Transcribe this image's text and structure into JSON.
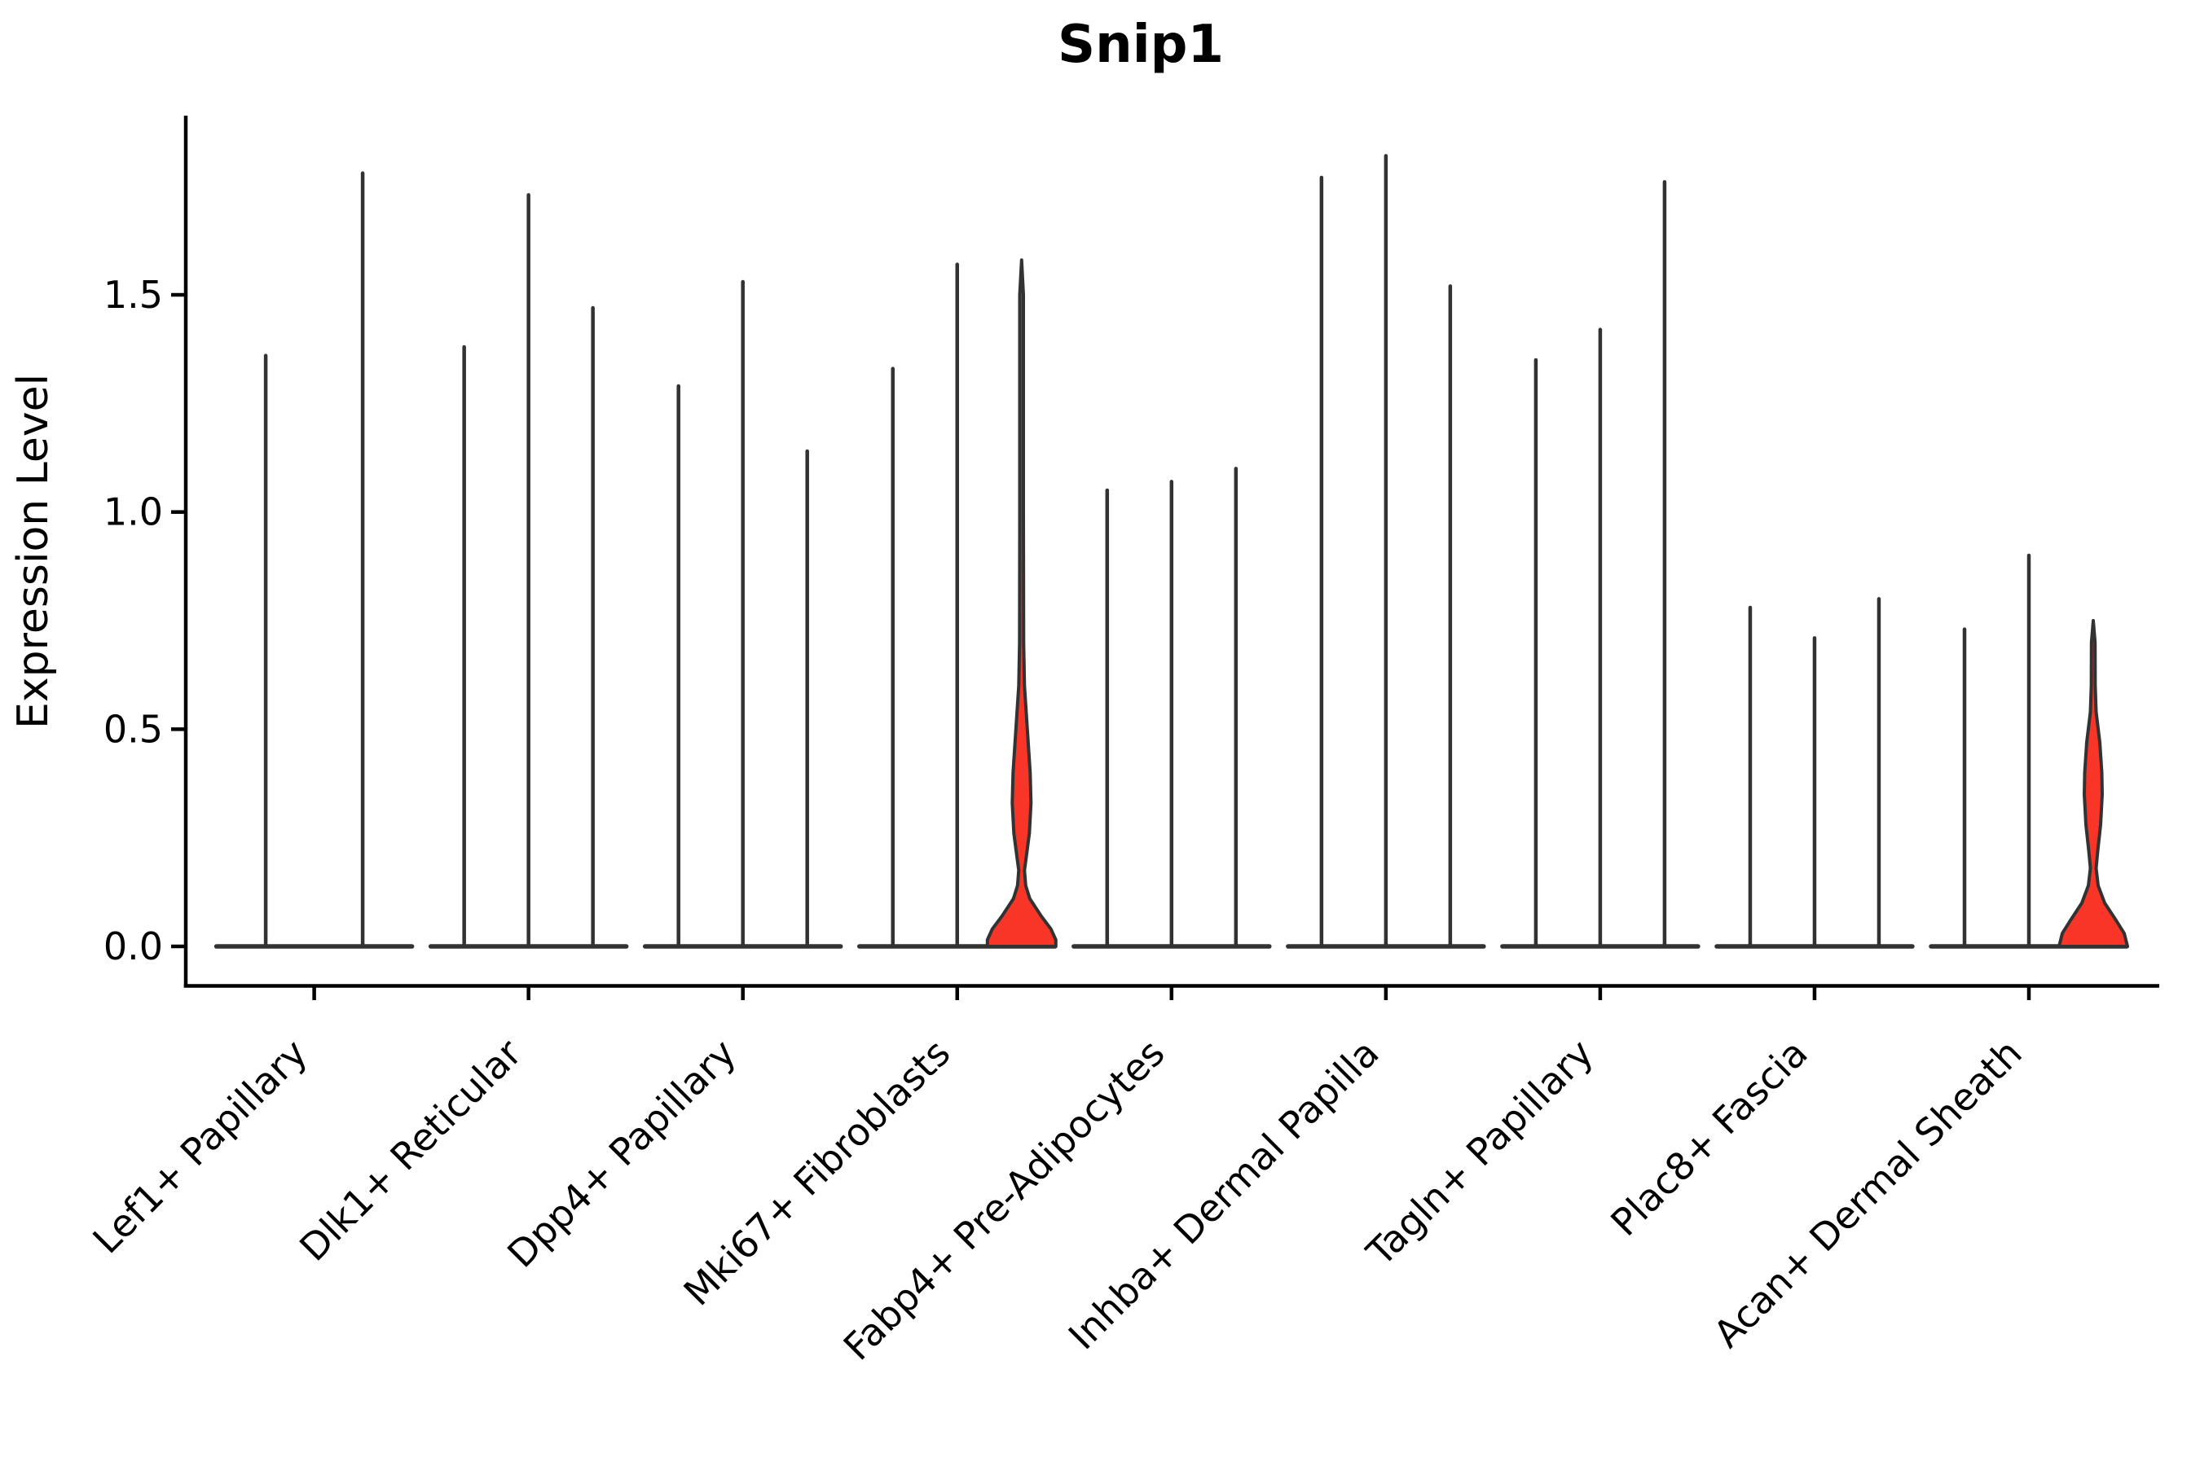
{
  "chart_data": {
    "type": "violin",
    "title": "Snip1",
    "ylabel": "Expression Level",
    "xlabel": "",
    "ytick_labels": [
      "0.0",
      "0.5",
      "1.0",
      "1.5"
    ],
    "ytick_values": [
      0.0,
      0.5,
      1.0,
      1.5
    ],
    "ylim": [
      -0.09,
      1.91
    ],
    "grid": false,
    "legend": "none",
    "background_color": "#ffffff",
    "spine_color": "#000000",
    "line_color": "#323232",
    "violin_fill_color": "#f93528",
    "categories": [
      "Lef1+ Papillary",
      "Dlk1+ Reticular",
      "Dpp4+ Papillary",
      "Mki67+ Fibroblasts",
      "Fabp4+ Pre-Adipocytes",
      "Inhba+ Dermal Papilla",
      "Tagln+ Papillary",
      "Plac8+ Fascia",
      "Acan+ Dermal Sheath"
    ],
    "series": [
      {
        "category": "Lef1+ Papillary",
        "violins": [
          {
            "offset": -59.5,
            "max": 1.36,
            "filled": false
          },
          {
            "offset": 59.5,
            "max": 1.78,
            "filled": false
          }
        ]
      },
      {
        "category": "Dlk1+ Reticular",
        "violins": [
          {
            "offset": -79,
            "max": 1.38,
            "filled": false
          },
          {
            "offset": 0,
            "max": 1.73,
            "filled": false
          },
          {
            "offset": 79,
            "max": 1.47,
            "filled": false
          }
        ]
      },
      {
        "category": "Dpp4+ Papillary",
        "violins": [
          {
            "offset": -79,
            "max": 1.29,
            "filled": false
          },
          {
            "offset": 0,
            "max": 1.53,
            "filled": false
          },
          {
            "offset": 79,
            "max": 1.14,
            "filled": false
          }
        ]
      },
      {
        "category": "Mki67+ Fibroblasts",
        "violins": [
          {
            "offset": -79,
            "max": 1.33,
            "filled": false
          },
          {
            "offset": 0,
            "max": 1.57,
            "filled": false
          },
          {
            "offset": 79,
            "max": 1.58,
            "filled": true,
            "profile": [
              [
                1.58,
                0
              ],
              [
                1.5,
                2.2
              ],
              [
                1.0,
                2.2
              ],
              [
                0.7,
                2.5
              ],
              [
                0.6,
                3.5
              ],
              [
                0.5,
                7
              ],
              [
                0.4,
                10.5
              ],
              [
                0.33,
                11.5
              ],
              [
                0.26,
                9.5
              ],
              [
                0.21,
                6
              ],
              [
                0.175,
                3.5
              ],
              [
                0.14,
                5
              ],
              [
                0.11,
                10
              ],
              [
                0.07,
                24
              ],
              [
                0.04,
                36
              ],
              [
                0.015,
                42
              ],
              [
                0.0,
                42
              ]
            ]
          }
        ]
      },
      {
        "category": "Fabp4+ Pre-Adipocytes",
        "violins": [
          {
            "offset": -79,
            "max": 1.05,
            "filled": false
          },
          {
            "offset": 0,
            "max": 1.07,
            "filled": false
          },
          {
            "offset": 79,
            "max": 1.1,
            "filled": false
          }
        ]
      },
      {
        "category": "Inhba+ Dermal Papilla",
        "violins": [
          {
            "offset": -79,
            "max": 1.77,
            "filled": false
          },
          {
            "offset": 0,
            "max": 1.82,
            "filled": false
          },
          {
            "offset": 79,
            "max": 1.52,
            "filled": false
          }
        ]
      },
      {
        "category": "Tagln+ Papillary",
        "violins": [
          {
            "offset": -79,
            "max": 1.35,
            "filled": false
          },
          {
            "offset": 0,
            "max": 1.42,
            "filled": false
          },
          {
            "offset": 79,
            "max": 1.76,
            "filled": false
          }
        ]
      },
      {
        "category": "Plac8+ Fascia",
        "violins": [
          {
            "offset": -79,
            "max": 0.78,
            "filled": false
          },
          {
            "offset": 0,
            "max": 0.71,
            "filled": false
          },
          {
            "offset": 79,
            "max": 0.8,
            "filled": false
          }
        ]
      },
      {
        "category": "Acan+ Dermal Sheath",
        "violins": [
          {
            "offset": -79,
            "max": 0.73,
            "filled": false
          },
          {
            "offset": 0,
            "max": 0.9,
            "filled": false
          },
          {
            "offset": 79,
            "max": 0.75,
            "filled": true,
            "profile": [
              [
                0.75,
                0
              ],
              [
                0.7,
                2.2
              ],
              [
                0.6,
                2.4
              ],
              [
                0.54,
                3.5
              ],
              [
                0.47,
                8
              ],
              [
                0.4,
                10.5
              ],
              [
                0.35,
                11
              ],
              [
                0.28,
                9
              ],
              [
                0.22,
                5.5
              ],
              [
                0.18,
                3.5
              ],
              [
                0.14,
                6
              ],
              [
                0.1,
                14
              ],
              [
                0.06,
                28
              ],
              [
                0.03,
                38
              ],
              [
                0.0,
                42
              ]
            ]
          }
        ]
      }
    ]
  }
}
